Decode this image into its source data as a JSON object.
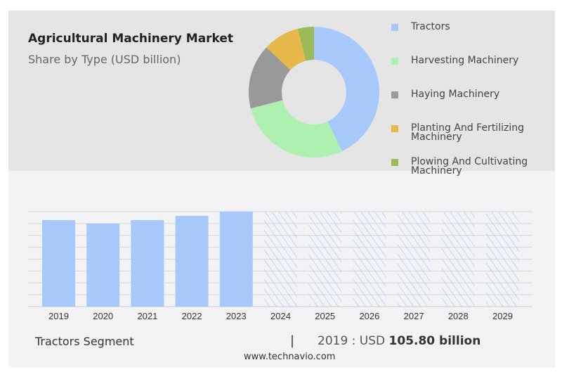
{
  "chart_data": [
    {
      "type": "pie",
      "subtitle_style": "donut",
      "title": "Agricultural Machinery Market",
      "subtitle": "Share by Type (USD billion)",
      "slices": [
        {
          "label": "Tractors",
          "value": 43,
          "color": "#a7c8fb"
        },
        {
          "label": "Harvesting Machinery",
          "value": 28,
          "color": "#aef0b0"
        },
        {
          "label": "Haying Machinery",
          "value": 16,
          "color": "#999999"
        },
        {
          "label": "Planting And Fertilizing Machinery",
          "value": 9,
          "color": "#e7b94b"
        },
        {
          "label": "Plowing And Cultivating Machinery",
          "value": 4,
          "color": "#9cbb58"
        }
      ],
      "legend": "right"
    },
    {
      "type": "bar",
      "categories": [
        "2019",
        "2020",
        "2021",
        "2022",
        "2023",
        "2024",
        "2025",
        "2026",
        "2027",
        "2028",
        "2029"
      ],
      "values": [
        105.8,
        101.5,
        105.8,
        110.9,
        116.1,
        null,
        null,
        null,
        null,
        null,
        null
      ],
      "forecast": [
        false,
        false,
        false,
        false,
        false,
        true,
        true,
        true,
        true,
        true,
        true
      ],
      "ylim": [
        0,
        116.1
      ],
      "grid": true,
      "color": "#a7c8fb"
    }
  ],
  "footer": {
    "segment": "Tractors Segment",
    "separator": "|",
    "year_label": "2019 : USD",
    "value": "105.80 billion",
    "url": "www.technavio.com"
  }
}
